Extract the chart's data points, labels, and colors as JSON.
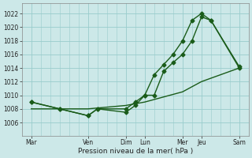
{
  "xlabel": "Pression niveau de la mer( hPa )",
  "background_color": "#cce8e8",
  "grid_color": "#99cccc",
  "line_color": "#1a5c1a",
  "x_labels": [
    "Mar",
    "Ven",
    "Dim",
    "Lun",
    "Mer",
    "Jeu",
    "Sam"
  ],
  "x_day_pos": [
    0,
    3,
    5,
    6,
    8,
    9,
    11
  ],
  "ylim": [
    1004,
    1023.5
  ],
  "yticks": [
    1006,
    1008,
    1010,
    1012,
    1014,
    1016,
    1018,
    1020,
    1022
  ],
  "series1_x": [
    0,
    1.5,
    3,
    3.5,
    5,
    5.5,
    6,
    6.5,
    7,
    7.5,
    8,
    8.5,
    9,
    9.5,
    11
  ],
  "series1_y": [
    1009,
    1008,
    1007,
    1008,
    1007.5,
    1008.5,
    1010,
    1010,
    1013.5,
    1014.8,
    1016,
    1018,
    1021.5,
    1021,
    1014
  ],
  "series2_x": [
    0,
    1.5,
    3,
    3.5,
    5,
    5.5,
    6,
    6.5,
    7,
    7.5,
    8,
    8.5,
    9,
    9.5,
    11
  ],
  "series2_y": [
    1009,
    1008,
    1007,
    1008,
    1008,
    1009,
    1010,
    1013,
    1014.5,
    1016,
    1018,
    1021,
    1022,
    1021,
    1014.2
  ],
  "series3_x": [
    0,
    3,
    5,
    6,
    8,
    9,
    11
  ],
  "series3_y": [
    1008,
    1008,
    1008.5,
    1009,
    1010.5,
    1012,
    1014
  ],
  "marker_size": 2.5,
  "line_width": 1.0,
  "tick_fontsize": 5.5,
  "xlabel_fontsize": 6.5
}
